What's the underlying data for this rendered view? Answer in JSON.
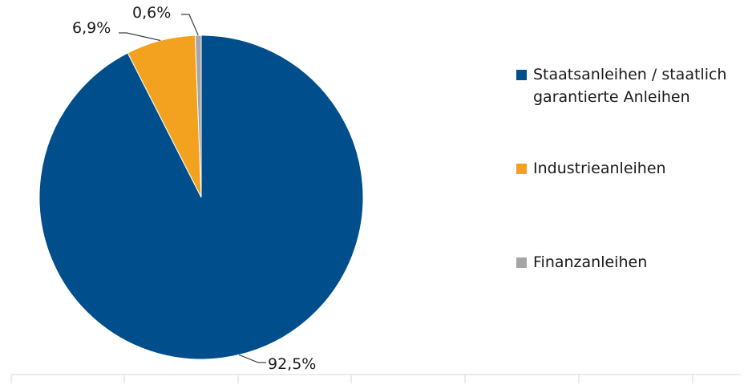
{
  "chart_data": {
    "type": "pie",
    "slices": [
      {
        "label": "Staatsanleihen / staatlich garantierte Anleihen",
        "label_lines": [
          "Staatsanleihen / staatlich",
          "garantierte Anleihen"
        ],
        "value": 92.5,
        "display": "92,5%",
        "color": "#004F8C"
      },
      {
        "label": "Industrieanleihen",
        "label_lines": [
          "Industrieanleihen"
        ],
        "value": 6.9,
        "display": "6,9%",
        "color": "#F2A21E"
      },
      {
        "label": "Finanzanleihen",
        "label_lines": [
          "Finanzanleihen"
        ],
        "value": 0.6,
        "display": "0,6%",
        "color": "#A6A6A6"
      }
    ],
    "legend_position": "right",
    "axis_color": "#D9D9D9"
  }
}
